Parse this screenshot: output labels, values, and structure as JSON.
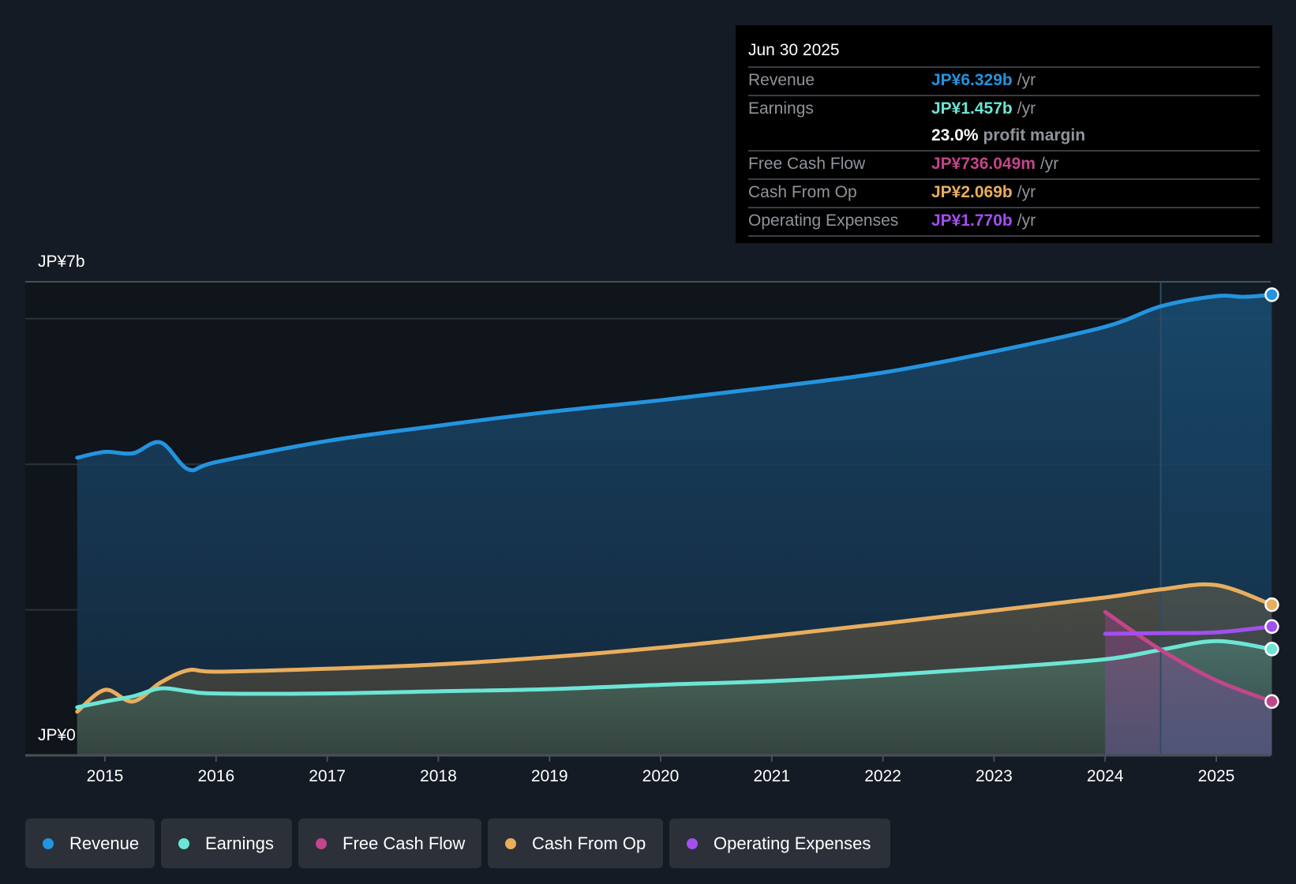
{
  "tooltip": {
    "date": "Jun 30 2025",
    "rows": [
      {
        "label": "Revenue",
        "value": "JP¥6.329b",
        "unit": "/yr",
        "color": "#2394df"
      },
      {
        "label": "Earnings",
        "value": "JP¥1.457b",
        "unit": "/yr",
        "color": "#6ce5d4"
      },
      {
        "label": "",
        "value": "23.0%",
        "unit": "profit margin",
        "color": "#ffffff"
      },
      {
        "label": "Free Cash Flow",
        "value": "JP¥736.049m",
        "unit": "/yr",
        "color": "#c2468a"
      },
      {
        "label": "Cash From Op",
        "value": "JP¥2.069b",
        "unit": "/yr",
        "color": "#e9ae5d"
      },
      {
        "label": "Operating Expenses",
        "value": "JP¥1.770b",
        "unit": "/yr",
        "color": "#a24ff0"
      }
    ]
  },
  "legend": [
    {
      "label": "Revenue",
      "color": "#2394df"
    },
    {
      "label": "Earnings",
      "color": "#6ce5d4"
    },
    {
      "label": "Free Cash Flow",
      "color": "#c2468a"
    },
    {
      "label": "Cash From Op",
      "color": "#e9ae5d"
    },
    {
      "label": "Operating Expenses",
      "color": "#a24ff0"
    }
  ],
  "chart_data": {
    "type": "area",
    "title": "",
    "xlabel": "",
    "ylabel": "",
    "y_top_label": "JP¥7b",
    "y_bottom_label": "JP¥0",
    "ylim": [
      0,
      6.5
    ],
    "xlim": [
      2014.75,
      2025.5
    ],
    "x_ticks": [
      "2015",
      "2016",
      "2017",
      "2018",
      "2019",
      "2020",
      "2021",
      "2022",
      "2023",
      "2024",
      "2025"
    ],
    "gridlines": [
      0,
      2,
      4,
      6
    ],
    "grid": true,
    "highlight_x": 2025.5,
    "forecast_divider_x": 2024.5,
    "series": [
      {
        "name": "Revenue",
        "color": "#2394df",
        "x": [
          2014.75,
          2015,
          2015.25,
          2015.5,
          2015.75,
          2016,
          2017,
          2018,
          2019,
          2020,
          2021,
          2022,
          2023,
          2024,
          2024.5,
          2025,
          2025.25,
          2025.5
        ],
        "values": [
          4.09,
          4.17,
          4.15,
          4.3,
          3.93,
          4.03,
          4.32,
          4.53,
          4.72,
          4.88,
          5.06,
          5.26,
          5.55,
          5.89,
          6.17,
          6.31,
          6.3,
          6.33
        ]
      },
      {
        "name": "Cash From Op",
        "color": "#e9ae5d",
        "x": [
          2014.75,
          2015,
          2015.25,
          2015.5,
          2015.75,
          2016,
          2017,
          2018,
          2019,
          2020,
          2021,
          2022,
          2023,
          2024,
          2024.5,
          2025,
          2025.5
        ],
        "values": [
          0.6,
          0.9,
          0.74,
          1.0,
          1.17,
          1.15,
          1.19,
          1.25,
          1.35,
          1.48,
          1.64,
          1.81,
          1.99,
          2.17,
          2.28,
          2.34,
          2.07
        ]
      },
      {
        "name": "Earnings",
        "color": "#6ce5d4",
        "x": [
          2014.75,
          2015,
          2015.25,
          2015.5,
          2015.75,
          2016,
          2017,
          2018,
          2019,
          2020,
          2021,
          2022,
          2023,
          2024,
          2024.5,
          2025,
          2025.5
        ],
        "values": [
          0.66,
          0.74,
          0.81,
          0.92,
          0.88,
          0.85,
          0.85,
          0.88,
          0.91,
          0.97,
          1.02,
          1.1,
          1.2,
          1.32,
          1.45,
          1.57,
          1.46
        ]
      },
      {
        "name": "Free Cash Flow",
        "color": "#c2468a",
        "x": [
          2024,
          2024.5,
          2025,
          2025.5
        ],
        "values": [
          1.97,
          1.45,
          1.03,
          0.74
        ]
      },
      {
        "name": "Operating Expenses",
        "color": "#a24ff0",
        "x": [
          2024,
          2024.5,
          2025,
          2025.5
        ],
        "values": [
          1.67,
          1.68,
          1.69,
          1.77
        ]
      }
    ]
  }
}
